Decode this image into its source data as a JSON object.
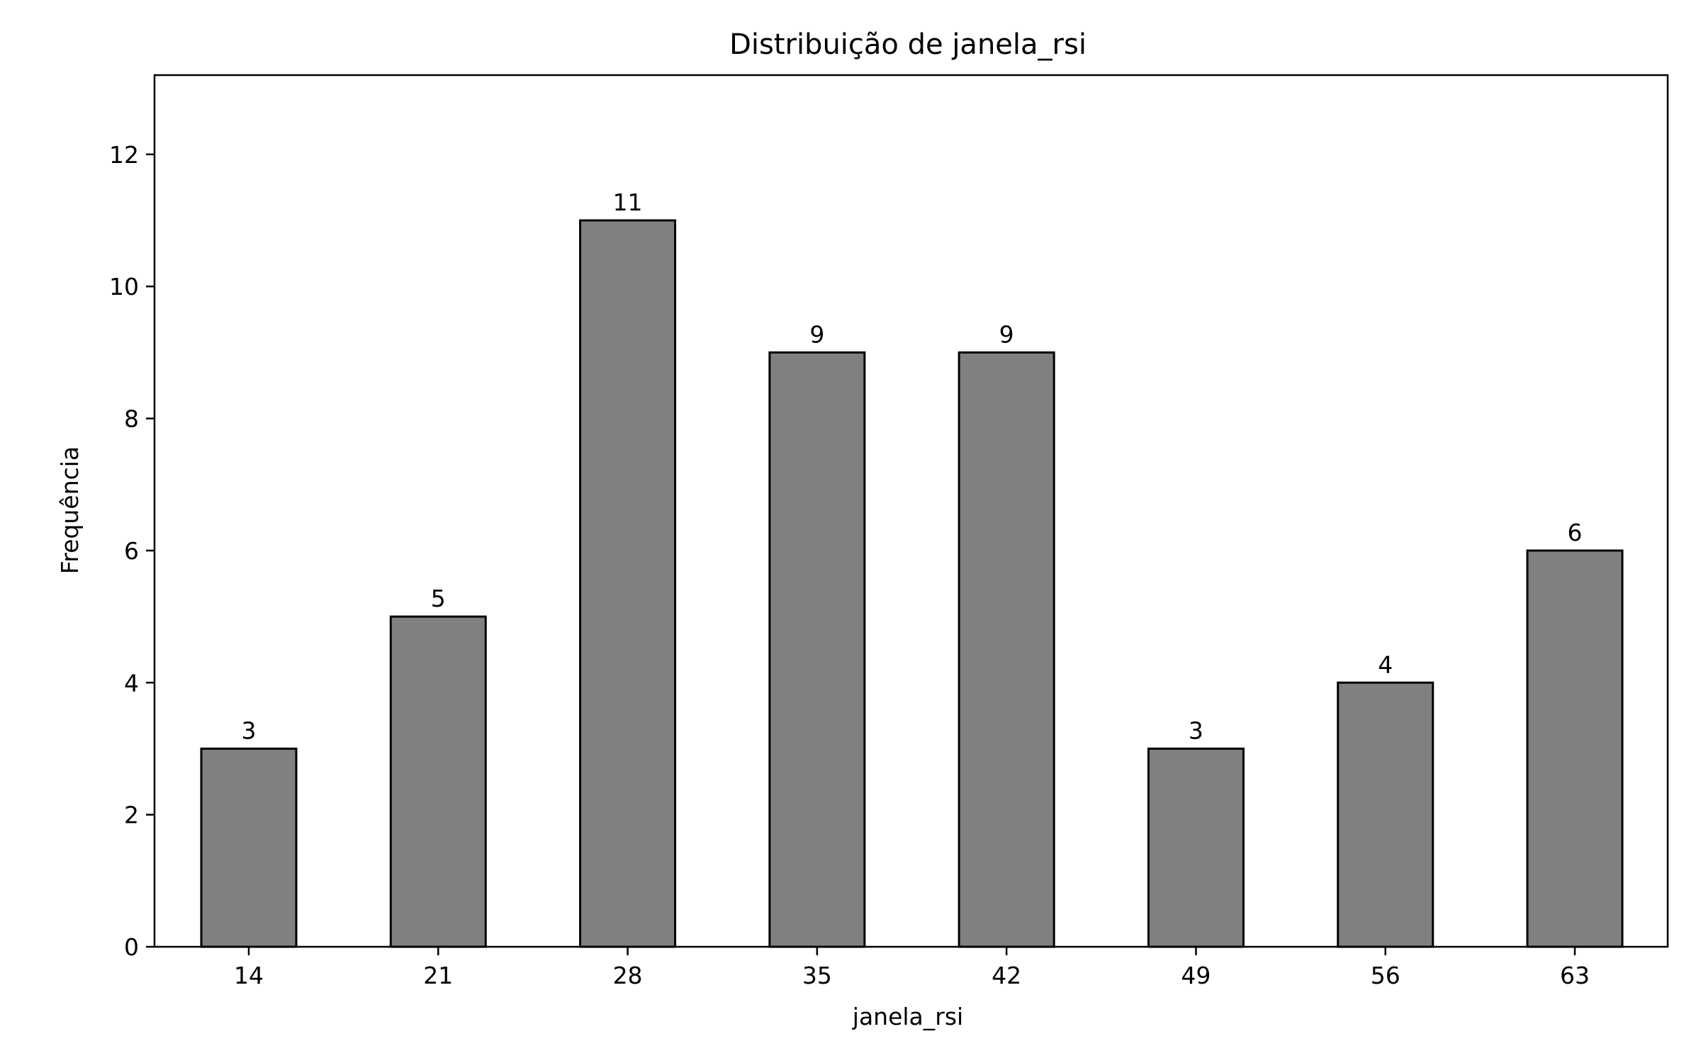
{
  "chart_data": {
    "type": "bar",
    "title": "Distribuição de janela_rsi",
    "xlabel": "janela_rsi",
    "ylabel": "Frequência",
    "categories": [
      "14",
      "21",
      "28",
      "35",
      "42",
      "49",
      "56",
      "63"
    ],
    "values": [
      3,
      5,
      11,
      9,
      9,
      3,
      4,
      6
    ],
    "data_labels": [
      "3",
      "5",
      "11",
      "9",
      "9",
      "3",
      "4",
      "6"
    ],
    "ylim": [
      0,
      13.2
    ],
    "yticks": [
      0,
      2,
      4,
      6,
      8,
      10,
      12
    ],
    "ytick_labels": [
      "0",
      "2",
      "4",
      "6",
      "8",
      "10",
      "12"
    ],
    "grid": false,
    "legend": "none",
    "colors": {
      "bar_fill": "#808080",
      "bar_edge": "#000000",
      "background": "#ffffff"
    }
  }
}
